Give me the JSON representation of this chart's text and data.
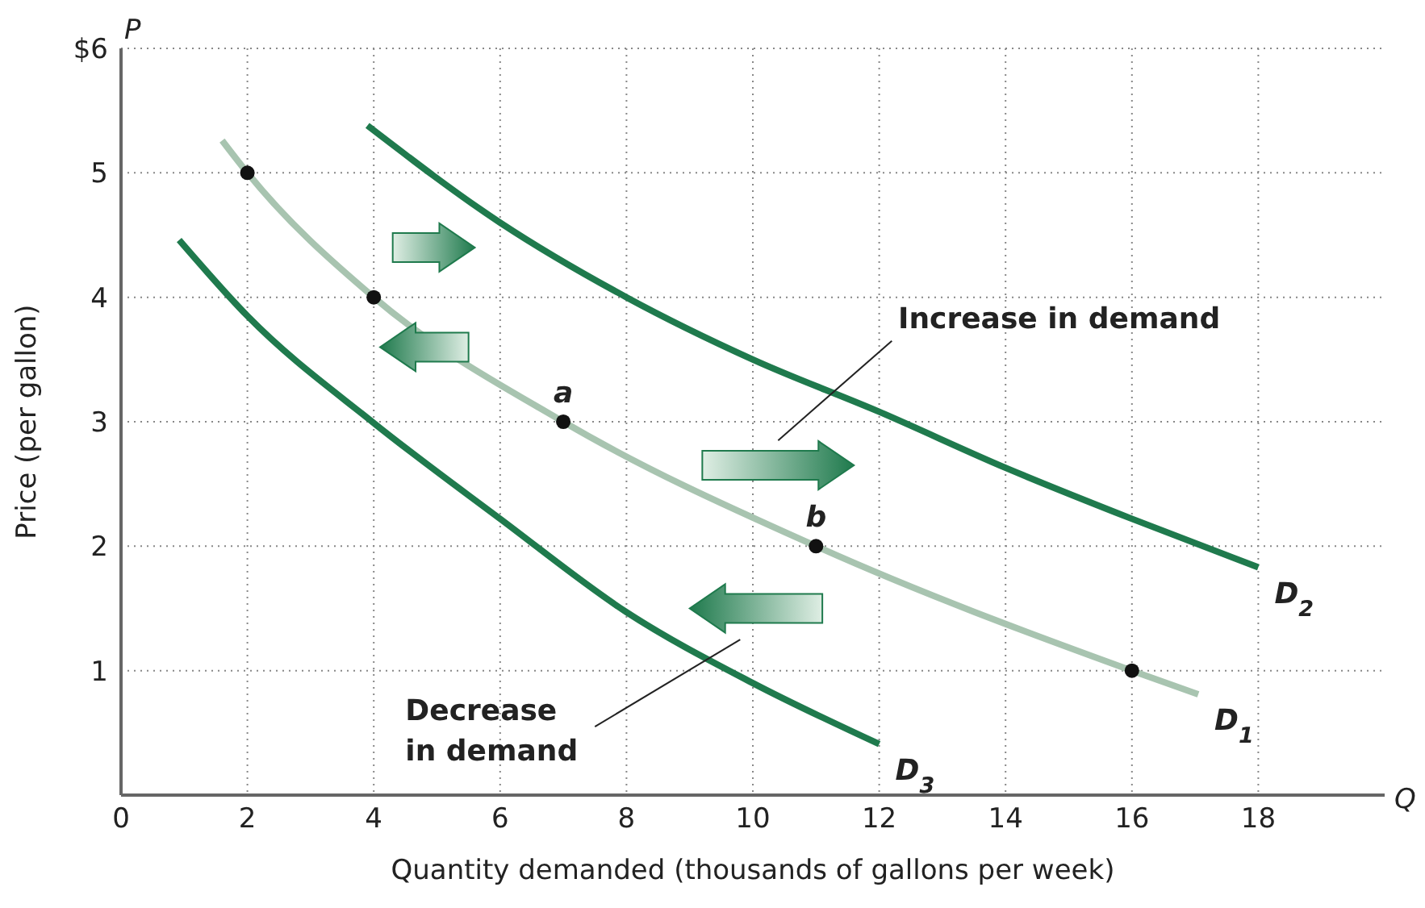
{
  "chart_data": {
    "type": "line",
    "xlabel": "Quantity demanded (thousands of gallons per week)",
    "ylabel": "Price (per gallon)",
    "xlim": [
      0,
      20
    ],
    "ylim": [
      0,
      6
    ],
    "xticks": [
      0,
      2,
      4,
      6,
      8,
      10,
      12,
      14,
      16,
      18
    ],
    "yticks": [
      1,
      2,
      3,
      4,
      5,
      {
        "value": 6,
        "label": "$6"
      }
    ],
    "grid": true,
    "line_style": "solid",
    "series": [
      {
        "name": "D$_{1}$",
        "color": "#a8c4b0",
        "marker": "none",
        "x": [
          1.6,
          2,
          4,
          7,
          11,
          16,
          17.05
        ],
        "values": [
          5.26,
          5,
          4,
          3,
          2,
          1,
          0.81
        ]
      },
      {
        "name": "D$_{2}$",
        "color": "#1f7a4d",
        "marker": "none",
        "x": [
          3.9,
          6,
          8,
          10,
          12,
          14,
          16,
          18
        ],
        "values": [
          5.38,
          4.6,
          4.0,
          3.5,
          3.08,
          2.63,
          2.22,
          1.83
        ]
      },
      {
        "name": "D$_{3}$",
        "color": "#1f7a4d",
        "marker": "none",
        "x": [
          0.92,
          2,
          4,
          6,
          8,
          10,
          12
        ],
        "values": [
          4.46,
          3.85,
          2.99,
          2.22,
          1.47,
          0.9,
          0.41
        ]
      },
      {
        "type": "scatter",
        "color": "#111111",
        "marker": "circle",
        "x": [
          2,
          4,
          7,
          11,
          16
        ],
        "values": [
          5,
          4,
          3,
          2,
          1
        ]
      }
    ],
    "annotations": [
      {
        "text": "a",
        "x": 7,
        "y": 3
      },
      {
        "text": "b",
        "x": 11,
        "y": 2
      },
      "Increase in demand",
      "Decrease in demand",
      "P",
      "Q"
    ]
  }
}
